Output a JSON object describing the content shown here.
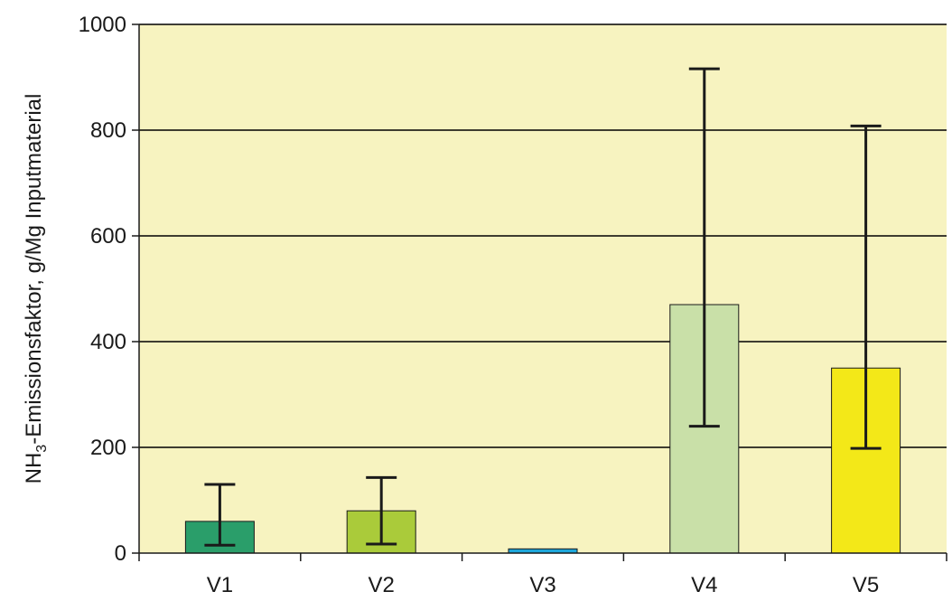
{
  "chart_data": {
    "type": "bar",
    "title": "",
    "xlabel": "",
    "ylabel_parts": {
      "prefix": "NH",
      "subscript": "3",
      "suffix": "-Emissionsfaktor, g/Mg Inputmaterial"
    },
    "categories": [
      "V1",
      "V2",
      "V3",
      "V4",
      "V5"
    ],
    "values": [
      60,
      80,
      8,
      470,
      350
    ],
    "error_low": [
      15,
      17,
      8,
      240,
      198
    ],
    "error_high": [
      130,
      143,
      8,
      916,
      808
    ],
    "colors": [
      "#2a9e6a",
      "#aacb3a",
      "#1ea6da",
      "#c9e0a8",
      "#f3e818"
    ],
    "ylim": [
      0,
      1000
    ],
    "yticks": [
      0,
      200,
      400,
      600,
      800,
      1000
    ],
    "ytick_labels": [
      "0",
      "200",
      "400",
      "600",
      "800",
      "1000"
    ],
    "grid": true,
    "legend": "none",
    "plot_background": "#f7f3c0",
    "gridline_color": "#000000"
  }
}
